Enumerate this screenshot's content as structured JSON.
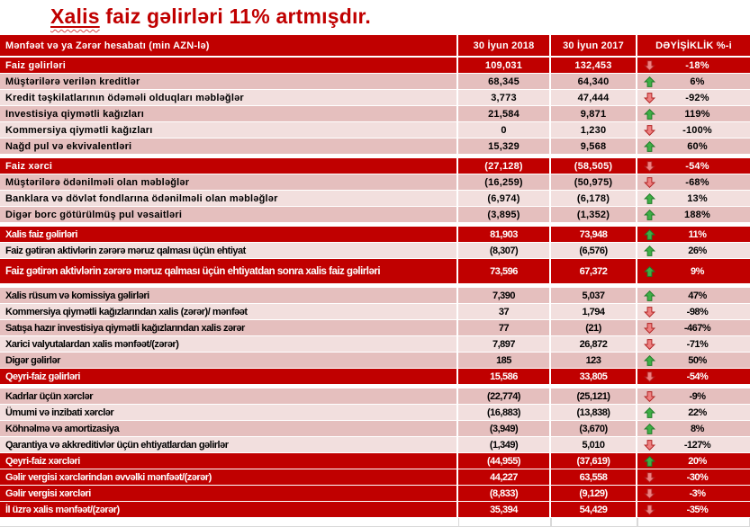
{
  "title": {
    "underlined_word": "Xalis",
    "rest": " faiz gəlirləri 11% artmışdır."
  },
  "colors": {
    "dark_red": "#c00000",
    "band_dark_pink": "#e5bfbe",
    "band_light_pink": "#f2dfde",
    "arrow_up_green": "#3fae46",
    "arrow_down_red": "#ee8080",
    "title_red": "#c00000"
  },
  "table": {
    "columns": [
      "Mənfəət və ya Zərər hesabatı (min AZN-lə)",
      "30 İyun 2018",
      "30 İyun 2017",
      "DƏYİŞİKLİK %-i"
    ],
    "rows": [
      {
        "label": "Faiz gəlirləri",
        "y2018": "109,031",
        "y2017": "132,453",
        "dir": "down",
        "change": "-18%",
        "style": "dark",
        "gap": false,
        "tall": false
      },
      {
        "label": "Müştərilərə verilən kreditlər",
        "y2018": "68,345",
        "y2017": "64,340",
        "dir": "up",
        "change": "6%",
        "style": "band-a",
        "gap": false,
        "tall": false
      },
      {
        "label": "Kredit təşkilatlarının ödəməli olduqları məbləğlər",
        "y2018": "3,773",
        "y2017": "47,444",
        "dir": "down",
        "change": "-92%",
        "style": "band-b",
        "gap": false,
        "tall": false
      },
      {
        "label": "Investisiya qiymətli kağızları",
        "y2018": "21,584",
        "y2017": "9,871",
        "dir": "up",
        "change": "119%",
        "style": "band-a",
        "gap": false,
        "tall": false
      },
      {
        "label": "Kommersiya qiymətli kağızları",
        "y2018": "0",
        "y2017": "1,230",
        "dir": "down",
        "change": "-100%",
        "style": "band-b",
        "gap": false,
        "tall": false
      },
      {
        "label": "Nağd pul və ekvivalentləri",
        "y2018": "15,329",
        "y2017": "9,568",
        "dir": "up",
        "change": "60%",
        "style": "band-a",
        "gap": false,
        "tall": false
      },
      {
        "label": "Faiz xərci",
        "y2018": "(27,128)",
        "y2017": "(58,505)",
        "dir": "down",
        "change": "-54%",
        "style": "dark",
        "gap": true,
        "tall": false
      },
      {
        "label": "Müştərilərə ödənilməli olan məbləğlər",
        "y2018": "(16,259)",
        "y2017": "(50,975)",
        "dir": "down",
        "change": "-68%",
        "style": "band-a",
        "gap": false,
        "tall": false
      },
      {
        "label": "Banklara və dövlət fondlarına ödənilməli olan məbləğlər",
        "y2018": "(6,974)",
        "y2017": "(6,178)",
        "dir": "up",
        "change": "13%",
        "style": "band-b",
        "gap": false,
        "tall": false
      },
      {
        "label": "Digər borc götürülmüş pul vəsaitləri",
        "y2018": "(3,895)",
        "y2017": "(1,352)",
        "dir": "up",
        "change": "188%",
        "style": "band-a",
        "gap": false,
        "tall": false
      },
      {
        "label": "Xalis faiz gəlirləri",
        "y2018": "81,903",
        "y2017": "73,948",
        "dir": "up",
        "change": "11%",
        "style": "dark",
        "gap": true,
        "tall": false
      },
      {
        "label": "Faiz gətirən aktivlərin zərərə məruz qalması üçün ehtiyat",
        "y2018": "(8,307)",
        "y2017": "(6,576)",
        "dir": "up",
        "change": "26%",
        "style": "band-b",
        "gap": false,
        "tall": false
      },
      {
        "label": "Faiz gətirən aktivlərin zərərə məruz qalması üçün ehtiyatdan sonra xalis faiz gəlirləri",
        "y2018": "73,596",
        "y2017": "67,372",
        "dir": "up",
        "change": "9%",
        "style": "dark",
        "gap": false,
        "tall": true
      },
      {
        "label": "Xalis rüsum və komissiya gəlirləri",
        "y2018": "7,390",
        "y2017": "5,037",
        "dir": "up",
        "change": "47%",
        "style": "band-a",
        "gap": true,
        "tall": false
      },
      {
        "label": "Kommersiya qiymətli kağızlarından xalis (zərər)/ mənfəət",
        "y2018": "37",
        "y2017": "1,794",
        "dir": "down",
        "change": "-98%",
        "style": "band-b",
        "gap": false,
        "tall": false
      },
      {
        "label": "Satışa hazır investisiya qiymətli kağızlarından xalis zərər",
        "y2018": "77",
        "y2017": "(21)",
        "dir": "down",
        "change": "-467%",
        "style": "band-a",
        "gap": false,
        "tall": false
      },
      {
        "label": "Xarici valyutalardan xalis mənfəət/(zərər)",
        "y2018": "7,897",
        "y2017": "26,872",
        "dir": "down",
        "change": "-71%",
        "style": "band-b",
        "gap": false,
        "tall": false
      },
      {
        "label": "Digər gəlirlər",
        "y2018": "185",
        "y2017": "123",
        "dir": "up",
        "change": "50%",
        "style": "band-a",
        "gap": false,
        "tall": false
      },
      {
        "label": "Qeyri-faiz gəlirləri",
        "y2018": "15,586",
        "y2017": "33,805",
        "dir": "down",
        "change": "-54%",
        "style": "dark",
        "gap": false,
        "tall": false
      },
      {
        "label": "Kadrlar üçün xərclər",
        "y2018": "(22,774)",
        "y2017": "(25,121)",
        "dir": "down",
        "change": "-9%",
        "style": "band-a",
        "gap": true,
        "tall": false
      },
      {
        "label": "Ümumi və inzibati xərclər",
        "y2018": "(16,883)",
        "y2017": "(13,838)",
        "dir": "up",
        "change": "22%",
        "style": "band-b",
        "gap": false,
        "tall": false
      },
      {
        "label": "Köhnəlmə və amortizasiya",
        "y2018": "(3,949)",
        "y2017": "(3,670)",
        "dir": "up",
        "change": "8%",
        "style": "band-a",
        "gap": false,
        "tall": false
      },
      {
        "label": "Qarantiya və akkreditivlər üçün ehtiyatlardan gəlirlər",
        "y2018": "(1,349)",
        "y2017": "5,010",
        "dir": "down",
        "change": "-127%",
        "style": "band-b",
        "gap": false,
        "tall": false
      },
      {
        "label": "Qeyri-faiz xərcləri",
        "y2018": "(44,955)",
        "y2017": "(37,619)",
        "dir": "up",
        "change": "20%",
        "style": "dark",
        "gap": false,
        "tall": false
      },
      {
        "label": "Gəlir vergisi xərclərindən əvvəlki mənfəət/(zərər)",
        "y2018": "44,227",
        "y2017": "63,558",
        "dir": "down",
        "change": "-30%",
        "style": "dark",
        "gap": false,
        "tall": false
      },
      {
        "label": "Gəlir vergisi xərcləri",
        "y2018": "(8,833)",
        "y2017": "(9,129)",
        "dir": "down",
        "change": "-3%",
        "style": "dark",
        "gap": false,
        "tall": false
      },
      {
        "label": "İl üzrə xalis mənfəət/(zərər)",
        "y2018": "35,394",
        "y2017": "54,429",
        "dir": "down",
        "change": "-35%",
        "style": "dark",
        "gap": false,
        "tall": false
      }
    ]
  }
}
